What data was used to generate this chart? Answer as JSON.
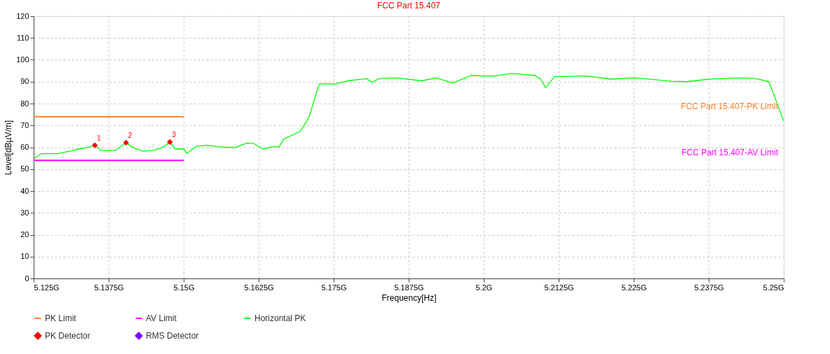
{
  "chart_data": {
    "type": "line",
    "title": "FCC Part 15.407",
    "xlabel": "Frequency[Hz]",
    "ylabel": "Level[dBµV/m]",
    "xlim": [
      5.125,
      5.25
    ],
    "xticks": [
      {
        "value": 5.125,
        "label": "5.125G"
      },
      {
        "value": 5.1375,
        "label": "5.1375G"
      },
      {
        "value": 5.15,
        "label": "5.15G"
      },
      {
        "value": 5.1625,
        "label": "5.1625G"
      },
      {
        "value": 5.175,
        "label": "5.175G"
      },
      {
        "value": 5.1875,
        "label": "5.1875G"
      },
      {
        "value": 5.2,
        "label": "5.2G"
      },
      {
        "value": 5.2125,
        "label": "5.2125G"
      },
      {
        "value": 5.225,
        "label": "5.225G"
      },
      {
        "value": 5.2375,
        "label": "5.2375G"
      },
      {
        "value": 5.25,
        "label": "5.25G"
      }
    ],
    "ylim": [
      0,
      120
    ],
    "yticks": [
      0,
      10,
      20,
      30,
      40,
      50,
      60,
      70,
      80,
      90,
      100,
      110,
      120
    ],
    "grid": true,
    "legend": "bottom left",
    "line_style": "solid",
    "marker": "none",
    "series": [
      {
        "name": "PK Limit",
        "type": "line",
        "color": "#ff7f27",
        "x": [
          5.125,
          5.15
        ],
        "values": [
          74,
          74
        ]
      },
      {
        "name": "AV Limit",
        "type": "line",
        "color": "#ff00ff",
        "x": [
          5.125,
          5.15
        ],
        "values": [
          54,
          54
        ]
      },
      {
        "name": "Horizontal PK",
        "type": "line",
        "color": "#00ff00",
        "x": [
          5.1252,
          5.1263,
          5.129,
          5.131,
          5.1325,
          5.134,
          5.1352,
          5.1363,
          5.1386,
          5.1404,
          5.1413,
          5.1432,
          5.1452,
          5.1467,
          5.1477,
          5.1486,
          5.1501,
          5.1505,
          5.1521,
          5.154,
          5.1559,
          5.1586,
          5.1605,
          5.1617,
          5.1632,
          5.1647,
          5.1659,
          5.1667,
          5.1694,
          5.1709,
          5.1718,
          5.1726,
          5.1753,
          5.1774,
          5.1805,
          5.1814,
          5.1826,
          5.1855,
          5.1897,
          5.192,
          5.1949,
          5.1978,
          5.2016,
          5.2047,
          5.2085,
          5.2095,
          5.2103,
          5.2118,
          5.217,
          5.2212,
          5.2254,
          5.2312,
          5.2339,
          5.2377,
          5.2427,
          5.2454,
          5.2475,
          5.2485,
          5.25
        ],
        "values": [
          55.1,
          57.1,
          57.1,
          58.2,
          59.2,
          59.9,
          60.9,
          58.5,
          58.5,
          62.1,
          60.2,
          58.2,
          58.7,
          60.2,
          62.4,
          59.2,
          59.2,
          57.1,
          60.5,
          60.9,
          60.2,
          59.9,
          61.9,
          61.7,
          59.2,
          60.2,
          60.2,
          63.8,
          67.2,
          73.8,
          82.0,
          89.0,
          89.0,
          90.4,
          91.4,
          89.7,
          91.4,
          91.7,
          90.4,
          91.7,
          89.4,
          92.8,
          92.5,
          93.8,
          92.8,
          91.2,
          87.3,
          92.3,
          92.6,
          91.2,
          91.7,
          90.2,
          90.0,
          91.2,
          91.7,
          91.4,
          90.0,
          83.0,
          71.9
        ]
      },
      {
        "name": "PK Detector",
        "type": "scatter",
        "marker": "diamond",
        "color": "#ff0000",
        "x": [
          5.1352,
          5.1404,
          5.1477
        ],
        "values": [
          60.9,
          62.1,
          62.4
        ]
      },
      {
        "name": "RMS Detector",
        "type": "scatter",
        "marker": "diamond",
        "color": "#8000ff"
      }
    ],
    "annotations": [
      {
        "text": "1",
        "x": 5.1352,
        "y": 60.9
      },
      {
        "text": "2",
        "x": 5.1404,
        "y": 62.1
      },
      {
        "text": "3",
        "x": 5.1477,
        "y": 62.4
      },
      "FCC Part 15.407-PK Limit",
      "FCC Part 15.407-AV Limit"
    ]
  }
}
